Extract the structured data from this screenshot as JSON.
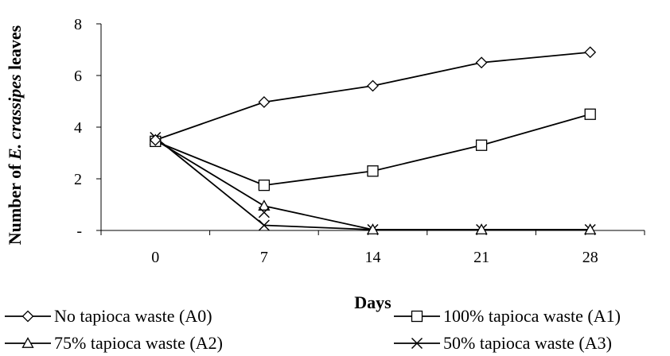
{
  "chart_data": {
    "type": "line",
    "categories": [
      "0",
      "7",
      "14",
      "21",
      "28"
    ],
    "xlabel": "Days",
    "ylabel_prefix": "Number of ",
    "ylabel_italic": "E. crassipes",
    "ylabel_suffix": " leaves",
    "ylim": [
      0,
      8
    ],
    "yticks": [
      {
        "value": 0,
        "label": "-"
      },
      {
        "value": 2,
        "label": "2"
      },
      {
        "value": 4,
        "label": "4"
      },
      {
        "value": 6,
        "label": "6"
      },
      {
        "value": 8,
        "label": "8"
      }
    ],
    "grid": false,
    "legend_position": "bottom",
    "series": [
      {
        "name": "No tapioca waste (A0)",
        "marker": "diamond",
        "values": [
          3.5,
          4.97,
          5.6,
          6.5,
          6.9
        ]
      },
      {
        "name": "100%  tapioca waste (A1)",
        "marker": "square",
        "values": [
          3.45,
          1.75,
          2.3,
          3.3,
          4.5
        ]
      },
      {
        "name": "75% tapioca waste (A2)",
        "marker": "triangle",
        "values": [
          3.5,
          0.95,
          0.03,
          0.03,
          0.03
        ]
      },
      {
        "name": "50% tapioca waste (A3)",
        "marker": "x",
        "values": [
          3.6,
          0.2,
          0.03,
          0.03,
          0.03
        ]
      }
    ],
    "extra_markers": [
      {
        "series": 2,
        "category": 1,
        "marker": "x",
        "value": 0.7
      }
    ]
  }
}
